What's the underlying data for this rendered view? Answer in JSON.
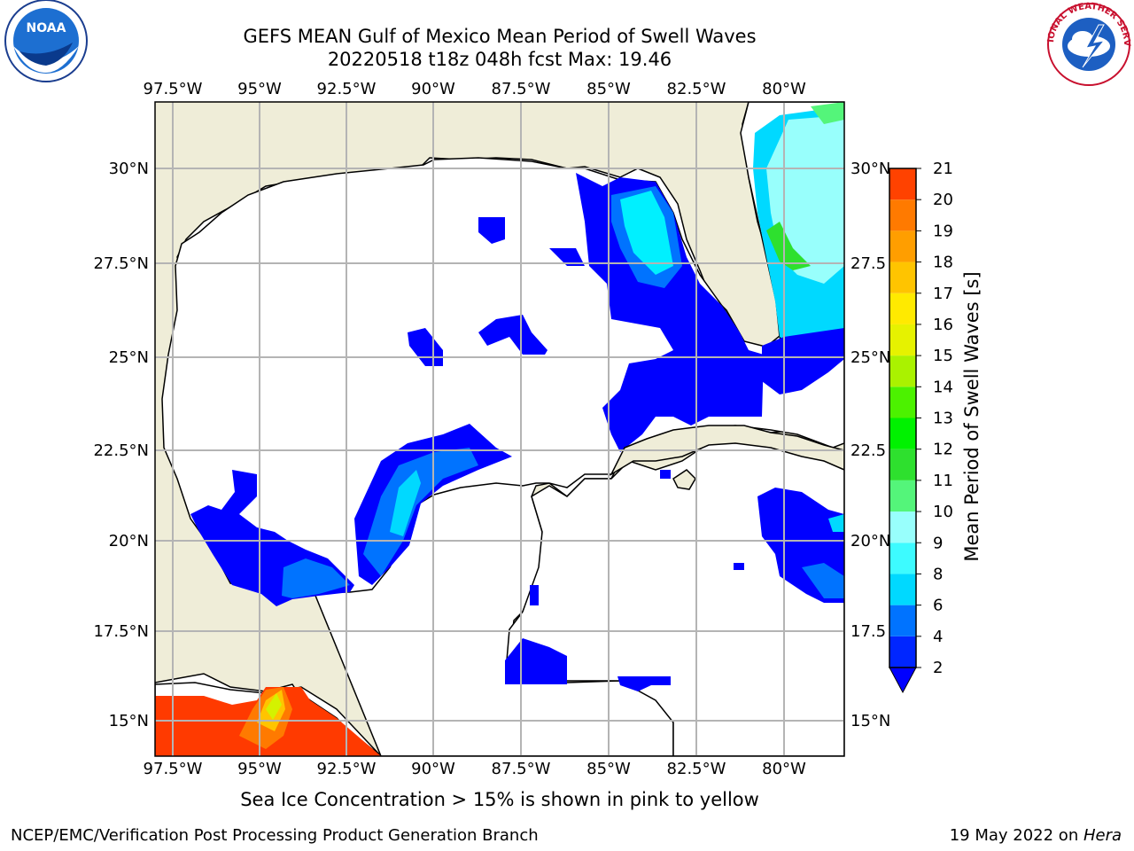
{
  "title_line1": "GEFS MEAN Gulf of Mexico Mean Period of Swell Waves",
  "title_line2": "20220518 t18z 048h fcst   Max: 19.46",
  "colorbar": {
    "label": "Mean Period of Swell Waves [s]",
    "ticks": [
      "2",
      "4",
      "6",
      "8",
      "9",
      "10",
      "11",
      "12",
      "13",
      "14",
      "15",
      "16",
      "17",
      "18",
      "19",
      "20",
      "21"
    ],
    "colors": [
      "#0026ff",
      "#0073ff",
      "#00d9ff",
      "#3dfbff",
      "#98fffc",
      "#54f57a",
      "#2ee02e",
      "#00f200",
      "#4cf200",
      "#aaf200",
      "#e6f200",
      "#ffea00",
      "#ffc400",
      "#ff9e00",
      "#ff7a00",
      "#ff4200",
      "#ff0000"
    ]
  },
  "axes": {
    "lon_labels": [
      "97.5°W",
      "95°W",
      "92.5°W",
      "90°W",
      "87.5°W",
      "85°W",
      "82.5°W",
      "80°W"
    ],
    "lat_labels_left": [
      "30°N",
      "27.5°N",
      "25°N",
      "22.5°N",
      "20°N",
      "17.5°N",
      "15°N"
    ],
    "lat_labels_right": [
      "30°N",
      "27.5",
      "25°N",
      "22.5",
      "20°N",
      "17.5",
      "15°N"
    ]
  },
  "logos": {
    "left": "NOAA",
    "right": "NATIONAL WEATHER SERVICE"
  },
  "note": "Sea Ice Concentration > 15% is shown in pink to yellow",
  "footer_left": "NCEP/EMC/Verification Post Processing Product Generation Branch",
  "footer_date": "19 May 2022 on ",
  "footer_host": "Hera"
}
